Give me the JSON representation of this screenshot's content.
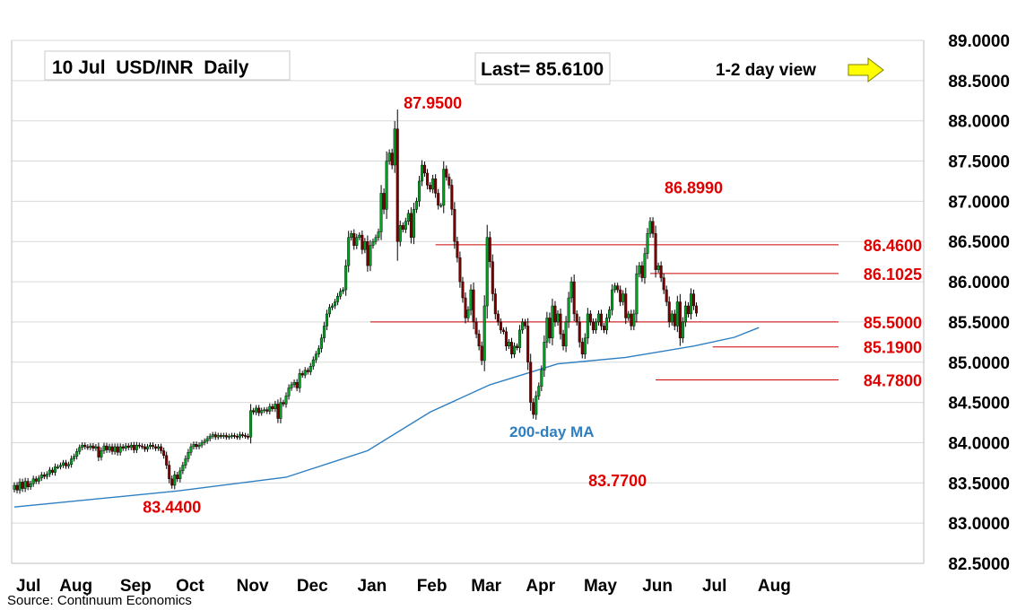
{
  "title": "10 Jul  USD/INR  Daily",
  "last_label": "Last= 85.6100",
  "view_label": "1-2 day view",
  "view_arrow": "right-arrow-icon",
  "source": "Source: Continuum Economics",
  "colors": {
    "up": "#00a020",
    "down": "#7a0000",
    "wick": "#000000",
    "level_line": "#cc0000",
    "level_text": "#e00000",
    "ma": "#2e7fc1",
    "grid": "#d9d9d9",
    "arrow": "#ffff00"
  },
  "chart_data": {
    "type": "candlestick",
    "ylim": [
      82.5,
      89.0
    ],
    "y_ticks": [
      "89.0000",
      "88.5000",
      "88.0000",
      "87.5000",
      "87.0000",
      "86.5000",
      "86.0000",
      "85.5000",
      "85.0000",
      "84.5000",
      "84.0000",
      "83.5000",
      "83.0000",
      "82.5000"
    ],
    "x_ticks": [
      "Jul",
      "Aug",
      "Sep",
      "Oct",
      "Nov",
      "Dec",
      "Jan",
      "Feb",
      "Mar",
      "Apr",
      "May",
      "Jun",
      "Jul",
      "Aug"
    ],
    "x_tick_index": [
      0,
      22,
      44,
      64,
      87,
      109,
      131,
      153,
      173,
      193,
      215,
      236,
      257,
      279
    ],
    "levels": [
      {
        "label": "87.9500",
        "value": 87.95,
        "start": 154,
        "line": false
      },
      {
        "label": "86.8990",
        "value": 86.899,
        "start": 250,
        "line": false
      },
      {
        "label": "86.4600",
        "value": 86.46,
        "start": 155,
        "line": true
      },
      {
        "label": "86.1025",
        "value": 86.1025,
        "start": 234,
        "line": true
      },
      {
        "label": "85.5000",
        "value": 85.5,
        "start": 131,
        "line": true
      },
      {
        "label": "85.1900",
        "value": 85.19,
        "start": 257,
        "line": true
      },
      {
        "label": "84.7800",
        "value": 84.78,
        "start": 236,
        "line": true
      },
      {
        "label": "83.7700",
        "value": 83.77,
        "start": 222,
        "line": false
      },
      {
        "label": "83.4400",
        "value": 83.44,
        "start": 58,
        "line": false
      }
    ],
    "ma_label": "200-day MA",
    "ma_points": [
      [
        0,
        83.2
      ],
      [
        60,
        83.4
      ],
      [
        100,
        83.57
      ],
      [
        130,
        83.9
      ],
      [
        153,
        84.38
      ],
      [
        175,
        84.72
      ],
      [
        200,
        84.98
      ],
      [
        225,
        85.06
      ],
      [
        250,
        85.2
      ],
      [
        265,
        85.31
      ],
      [
        274,
        85.43
      ]
    ],
    "closes": [
      83.47,
      83.41,
      83.51,
      83.43,
      83.52,
      83.45,
      83.49,
      83.55,
      83.52,
      83.56,
      83.6,
      83.58,
      83.61,
      83.66,
      83.63,
      83.7,
      83.7,
      83.72,
      83.75,
      83.71,
      83.73,
      83.8,
      83.83,
      83.89,
      83.94,
      83.97,
      83.95,
      83.94,
      83.96,
      83.93,
      83.95,
      83.82,
      83.9,
      83.96,
      83.91,
      83.95,
      83.89,
      83.95,
      83.88,
      83.95,
      83.93,
      83.96,
      83.94,
      83.97,
      83.91,
      83.97,
      83.96,
      83.95,
      83.92,
      83.95,
      83.97,
      83.95,
      83.93,
      83.95,
      83.9,
      83.84,
      83.72,
      83.55,
      83.47,
      83.6,
      83.55,
      83.65,
      83.72,
      83.8,
      83.88,
      83.95,
      83.98,
      83.95,
      83.97,
      84.0,
      84.02,
      84.05,
      84.08,
      84.1,
      84.07,
      84.09,
      84.08,
      84.09,
      84.07,
      84.08,
      84.09,
      84.08,
      84.07,
      84.1,
      84.09,
      84.08,
      84.07,
      84.4,
      84.38,
      84.43,
      84.37,
      84.4,
      84.41,
      84.39,
      84.45,
      84.42,
      84.48,
      84.3,
      84.5,
      84.48,
      84.58,
      84.68,
      84.72,
      84.75,
      84.68,
      84.86,
      84.84,
      84.9,
      84.88,
      84.95,
      85.03,
      85.1,
      85.17,
      85.3,
      85.45,
      85.6,
      85.68,
      85.7,
      85.75,
      85.82,
      85.88,
      85.9,
      86.2,
      86.55,
      86.6,
      86.45,
      86.55,
      86.58,
      86.4,
      86.5,
      86.2,
      86.45,
      86.5,
      86.55,
      86.62,
      87.1,
      86.9,
      87.5,
      87.6,
      87.45,
      87.9,
      86.5,
      86.7,
      86.65,
      86.75,
      86.85,
      86.55,
      86.9,
      87.0,
      87.25,
      87.45,
      87.35,
      87.2,
      87.15,
      87.28,
      87.1,
      86.95,
      86.95,
      87.4,
      87.3,
      87.2,
      86.9,
      86.5,
      86.3,
      86.0,
      85.8,
      85.55,
      85.65,
      85.9,
      85.5,
      85.35,
      85.2,
      85.02,
      85.7,
      86.55,
      86.25,
      85.85,
      85.6,
      85.5,
      85.4,
      85.38,
      85.2,
      85.25,
      85.1,
      85.2,
      85.18,
      85.4,
      85.5,
      85.45,
      85.0,
      84.5,
      84.35,
      84.58,
      84.7,
      84.9,
      85.25,
      85.55,
      85.3,
      85.7,
      85.5,
      85.6,
      85.35,
      85.2,
      85.5,
      85.8,
      86.0,
      85.6,
      85.5,
      85.25,
      85.1,
      85.3,
      85.6,
      85.5,
      85.4,
      85.5,
      85.6,
      85.45,
      85.4,
      85.55,
      85.65,
      85.9,
      85.95,
      85.9,
      85.75,
      85.85,
      85.55,
      85.6,
      85.45,
      85.6,
      86.1,
      86.2,
      86.05,
      86.35,
      86.6,
      86.75,
      86.6,
      86.15,
      86.2,
      86.05,
      85.9,
      85.75,
      85.5,
      85.6,
      85.45,
      85.75,
      85.3,
      85.5,
      85.7,
      85.6,
      85.85,
      85.7,
      85.61
    ]
  }
}
